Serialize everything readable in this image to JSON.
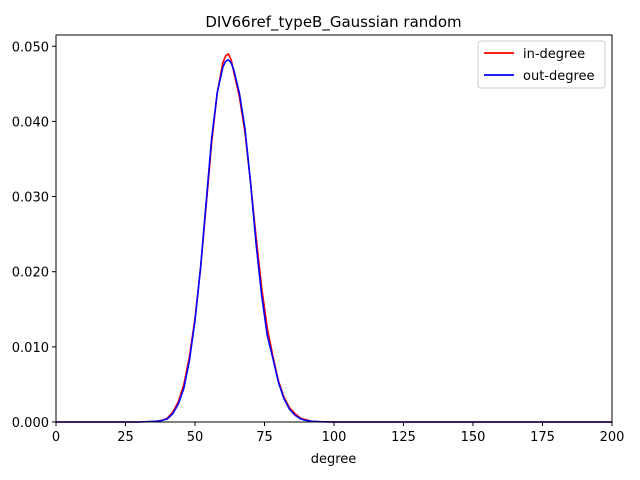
{
  "chart_data": {
    "type": "line",
    "title": "DIV66ref_typeB_Gaussian random",
    "xlabel": "degree",
    "ylabel": "",
    "xlim": [
      0,
      200
    ],
    "ylim": [
      0,
      0.0515
    ],
    "x_ticks": [
      0,
      25,
      50,
      75,
      100,
      125,
      150,
      175,
      200
    ],
    "x_tick_labels": [
      "0",
      "25",
      "50",
      "75",
      "100",
      "125",
      "150",
      "175",
      "200"
    ],
    "y_ticks": [
      0,
      0.01,
      0.02,
      0.03,
      0.04,
      0.05
    ],
    "y_tick_labels": [
      "0.000",
      "0.010",
      "0.020",
      "0.030",
      "0.040",
      "0.050"
    ],
    "grid": false,
    "legend_position": "top-right",
    "series": [
      {
        "name": "in-degree",
        "color": "#ff0000",
        "x": [
          0,
          30,
          36,
          38,
          40,
          42,
          44,
          46,
          48,
          50,
          52,
          54,
          56,
          58,
          60,
          61,
          62,
          63,
          64,
          66,
          68,
          70,
          72,
          74,
          76,
          78,
          80,
          82,
          84,
          86,
          88,
          90,
          92,
          95,
          100,
          120,
          150,
          200
        ],
        "y": [
          0,
          0,
          0.0001,
          0.0002,
          0.0005,
          0.0013,
          0.0027,
          0.005,
          0.0087,
          0.0138,
          0.0205,
          0.0287,
          0.0372,
          0.0438,
          0.0478,
          0.0487,
          0.049,
          0.0482,
          0.0465,
          0.0432,
          0.0385,
          0.0318,
          0.0245,
          0.0178,
          0.0125,
          0.0088,
          0.0055,
          0.0033,
          0.0019,
          0.0011,
          0.0005,
          0.0003,
          0.0001,
          5e-05,
          0,
          0,
          0,
          0
        ]
      },
      {
        "name": "out-degree",
        "color": "#0000ff",
        "x": [
          0,
          30,
          36,
          38,
          40,
          42,
          44,
          46,
          48,
          50,
          52,
          54,
          56,
          58,
          60,
          61,
          62,
          63,
          64,
          66,
          68,
          70,
          72,
          74,
          76,
          78,
          80,
          82,
          84,
          86,
          88,
          90,
          92,
          95,
          100,
          120,
          150,
          200
        ],
        "y": [
          0,
          0,
          0.0001,
          0.0002,
          0.0004,
          0.0011,
          0.0024,
          0.0045,
          0.0082,
          0.0135,
          0.0205,
          0.0292,
          0.0378,
          0.0438,
          0.0472,
          0.048,
          0.0482,
          0.0478,
          0.0468,
          0.0437,
          0.039,
          0.0318,
          0.0236,
          0.0168,
          0.0115,
          0.0085,
          0.0053,
          0.0031,
          0.0017,
          0.0009,
          0.0004,
          0.0002,
          0.0001,
          3e-05,
          0,
          0,
          0,
          0
        ]
      }
    ]
  }
}
